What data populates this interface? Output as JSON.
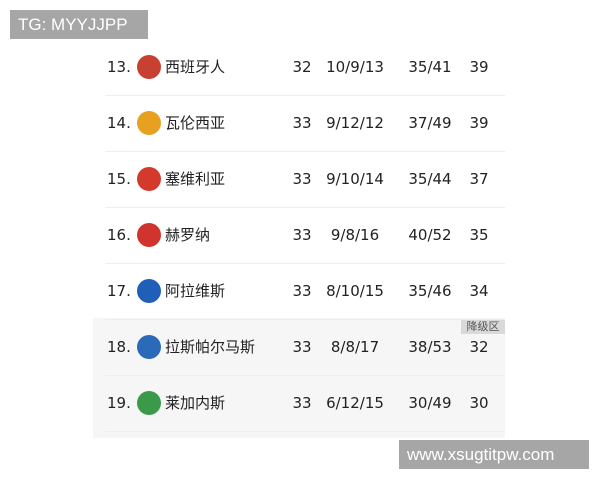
{
  "watermarks": {
    "top": "TG: MYYJJPP",
    "bottom": "www.xsugtitpw.com"
  },
  "relegation_label": "降级区",
  "rows": [
    {
      "rank": "13.",
      "team": "西班牙人",
      "played": "32",
      "wdl": "10/9/13",
      "goals": "35/41",
      "points": "39",
      "color": "#c8402f"
    },
    {
      "rank": "14.",
      "team": "瓦伦西亚",
      "played": "33",
      "wdl": "9/12/12",
      "goals": "37/49",
      "points": "39",
      "color": "#e8a020"
    },
    {
      "rank": "15.",
      "team": "塞维利亚",
      "played": "33",
      "wdl": "9/10/14",
      "goals": "35/44",
      "points": "37",
      "color": "#d43a2c"
    },
    {
      "rank": "16.",
      "team": "赫罗纳",
      "played": "33",
      "wdl": "9/8/16",
      "goals": "40/52",
      "points": "35",
      "color": "#d0342c"
    },
    {
      "rank": "17.",
      "team": "阿拉维斯",
      "played": "33",
      "wdl": "8/10/15",
      "goals": "35/46",
      "points": "34",
      "color": "#1f5fb8"
    },
    {
      "rank": "18.",
      "team": "拉斯帕尔马斯",
      "played": "33",
      "wdl": "8/8/17",
      "goals": "38/53",
      "points": "32",
      "color": "#2a6ab8"
    },
    {
      "rank": "19.",
      "team": "莱加内斯",
      "played": "33",
      "wdl": "6/12/15",
      "goals": "30/49",
      "points": "30",
      "color": "#3a9a4a"
    }
  ]
}
